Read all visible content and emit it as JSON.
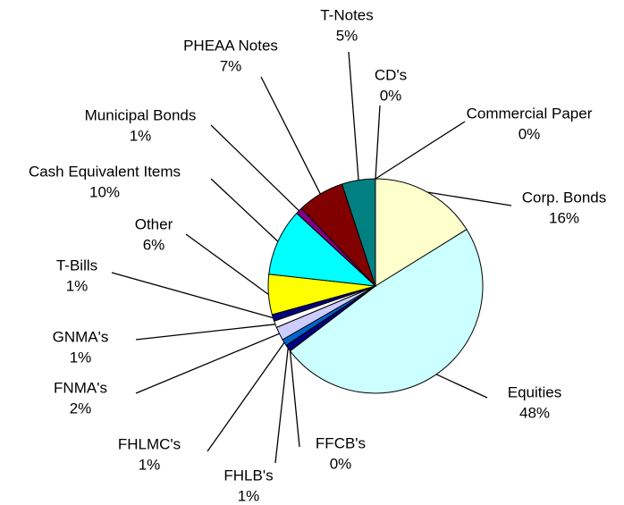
{
  "chart_data": {
    "type": "pie",
    "categories": [
      "Commercial Paper",
      "Corp. Bonds",
      "Equities",
      "FFCB's",
      "FHLB's",
      "FHLMC's",
      "FNMA's",
      "GNMA's",
      "T-Bills",
      "Other",
      "Cash Equivalent Items",
      "Municipal Bonds",
      "PHEAA Notes",
      "T-Notes",
      "CD's"
    ],
    "values": [
      0,
      16,
      48,
      0,
      1,
      1,
      2,
      1,
      1,
      6,
      10,
      1,
      7,
      5,
      0
    ],
    "value_labels": [
      "0%",
      "16%",
      "48%",
      "0%",
      "1%",
      "1%",
      "2%",
      "1%",
      "1%",
      "6%",
      "10%",
      "1%",
      "7%",
      "5%",
      "0%"
    ],
    "colors": [
      "#ffffff",
      "#ffffcc",
      "#ccffff",
      "#000080",
      "#000080",
      "#0066cc",
      "#ccccff",
      "#ffffff",
      "#000080",
      "#ffff00",
      "#00ffff",
      "#800080",
      "#800000",
      "#008080",
      "#ffffff"
    ]
  }
}
